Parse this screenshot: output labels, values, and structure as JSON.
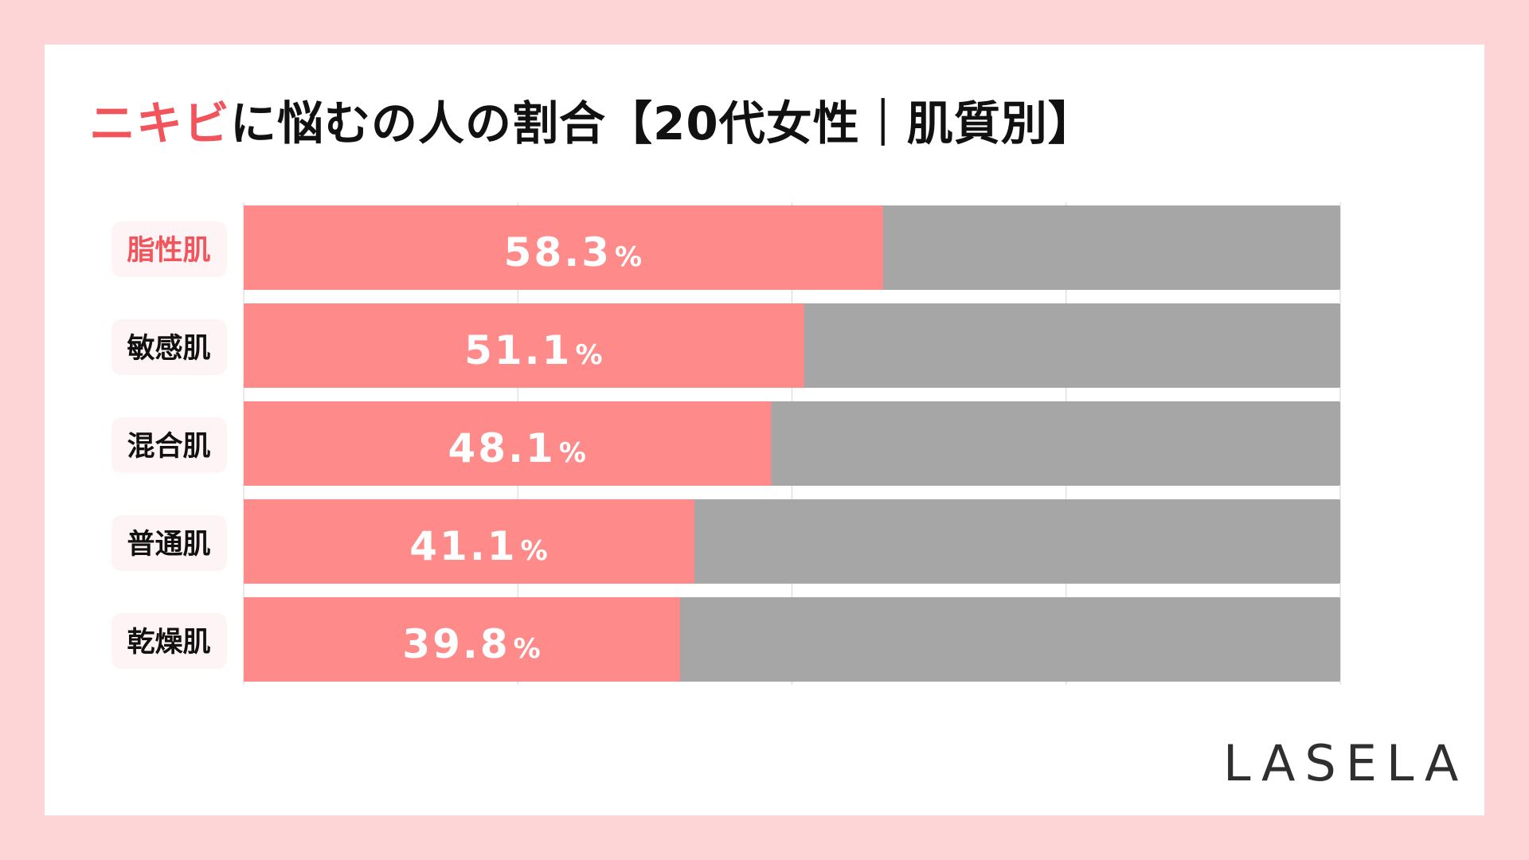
{
  "title": {
    "accent": "ニキビ",
    "rest": "に悩むの人の割合【20代女性｜肌質別】"
  },
  "logo": "LASELA",
  "colors": {
    "background": "#fdd5d7",
    "card": "#ffffff",
    "accent_text": "#f2545b",
    "bar_fill": "#ff8a8a",
    "bar_remainder": "#a6a6a6",
    "label_pill": "#fff4f5",
    "grid": "#d6d6d6"
  },
  "chart_data": {
    "type": "bar",
    "orientation": "horizontal",
    "stacked_to": 100,
    "xlim": [
      0,
      100
    ],
    "grid": true,
    "categories": [
      "脂性肌",
      "敏感肌",
      "混合肌",
      "普通肌",
      "乾燥肌"
    ],
    "highlight_category": "脂性肌",
    "values": [
      58.3,
      51.1,
      48.1,
      41.1,
      39.8
    ],
    "value_labels": [
      "58.3",
      "51.1",
      "48.1",
      "41.1",
      "39.8"
    ],
    "unit": "%"
  }
}
